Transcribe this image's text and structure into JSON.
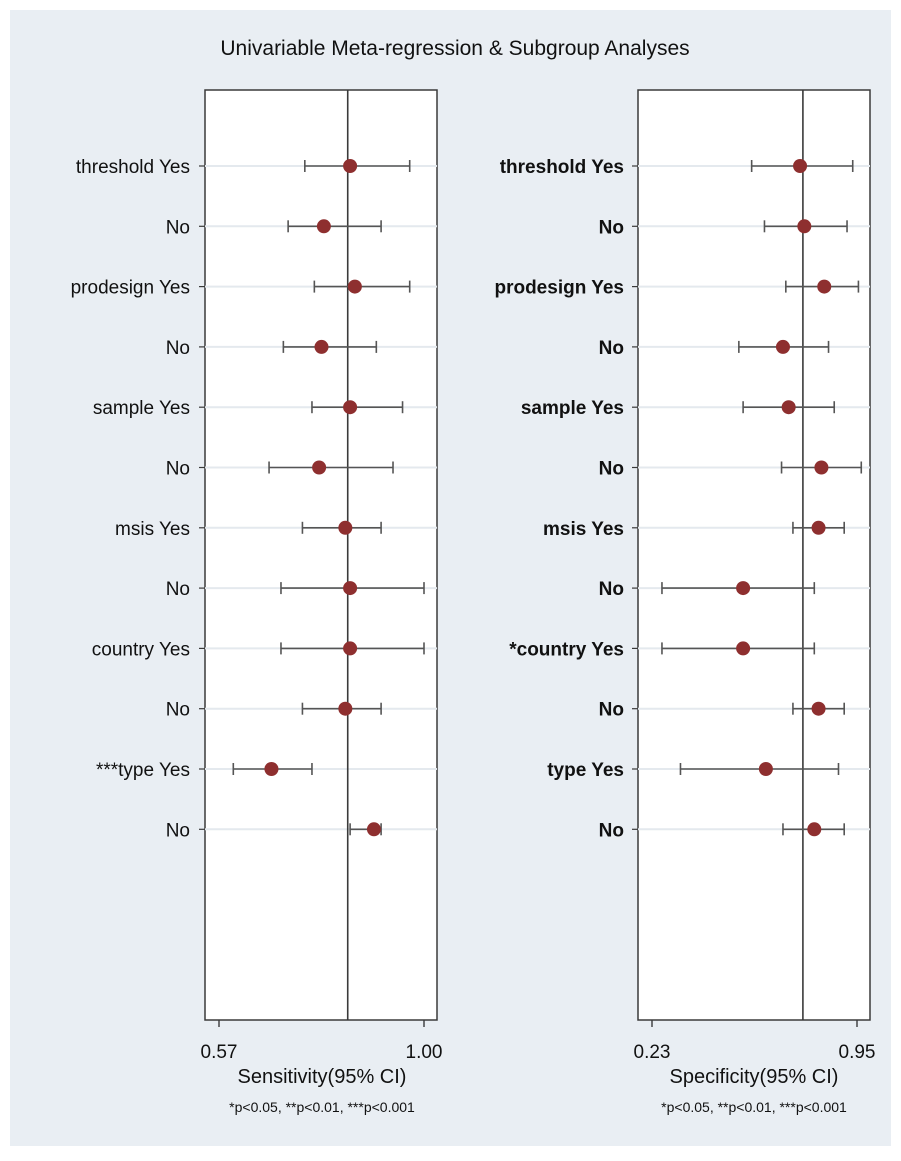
{
  "title": "Univariable Meta-regression & Subgroup Analyses",
  "colors": {
    "background": "#e9eef3",
    "panel": "#ffffff",
    "marker": "#8e2f2f",
    "line": "#3a3a3a",
    "grid": "#e4e9ee"
  },
  "chart_data": [
    {
      "type": "scatter",
      "xlabel": "Sensitivity(95% CI)",
      "footnote": "*p<0.05, **p<0.01, ***p<0.001",
      "xlim": [
        0.57,
        1.0
      ],
      "xticks": [
        "0.57",
        "1.00"
      ],
      "reference_line": 0.84,
      "grid": "horizontal",
      "rows": [
        {
          "label": "threshold Yes",
          "estimate": 0.845,
          "lower": 0.75,
          "upper": 0.97
        },
        {
          "label": "No",
          "estimate": 0.79,
          "lower": 0.715,
          "upper": 0.91
        },
        {
          "label": "prodesign Yes",
          "estimate": 0.855,
          "lower": 0.77,
          "upper": 0.97
        },
        {
          "label": "No",
          "estimate": 0.785,
          "lower": 0.705,
          "upper": 0.9
        },
        {
          "label": "sample Yes",
          "estimate": 0.845,
          "lower": 0.765,
          "upper": 0.955
        },
        {
          "label": "No",
          "estimate": 0.78,
          "lower": 0.675,
          "upper": 0.935
        },
        {
          "label": "msis Yes",
          "estimate": 0.835,
          "lower": 0.745,
          "upper": 0.91
        },
        {
          "label": "No",
          "estimate": 0.845,
          "lower": 0.7,
          "upper": 1.0
        },
        {
          "label": "country Yes",
          "estimate": 0.845,
          "lower": 0.7,
          "upper": 1.0
        },
        {
          "label": "No",
          "estimate": 0.835,
          "lower": 0.745,
          "upper": 0.91
        },
        {
          "label": "***type Yes",
          "estimate": 0.68,
          "lower": 0.6,
          "upper": 0.765
        },
        {
          "label": "No",
          "estimate": 0.895,
          "lower": 0.845,
          "upper": 0.91
        }
      ]
    },
    {
      "type": "scatter",
      "xlabel": "Specificity(95% CI)",
      "footnote": "*p<0.05, **p<0.01, ***p<0.001",
      "xlim": [
        0.23,
        0.95
      ],
      "xticks": [
        "0.23",
        "0.95"
      ],
      "reference_line": 0.76,
      "grid": "horizontal",
      "rows": [
        {
          "label": "threshold Yes",
          "estimate": 0.75,
          "lower": 0.58,
          "upper": 0.935
        },
        {
          "label": "No",
          "estimate": 0.765,
          "lower": 0.625,
          "upper": 0.915
        },
        {
          "label": "prodesign Yes",
          "estimate": 0.835,
          "lower": 0.7,
          "upper": 0.955
        },
        {
          "label": "No",
          "estimate": 0.69,
          "lower": 0.535,
          "upper": 0.85
        },
        {
          "label": "sample Yes",
          "estimate": 0.71,
          "lower": 0.55,
          "upper": 0.87
        },
        {
          "label": "No",
          "estimate": 0.825,
          "lower": 0.685,
          "upper": 0.965
        },
        {
          "label": "msis Yes",
          "estimate": 0.815,
          "lower": 0.725,
          "upper": 0.905
        },
        {
          "label": "No",
          "estimate": 0.55,
          "lower": 0.265,
          "upper": 0.8
        },
        {
          "label": "*country Yes",
          "estimate": 0.55,
          "lower": 0.265,
          "upper": 0.8
        },
        {
          "label": "No",
          "estimate": 0.815,
          "lower": 0.725,
          "upper": 0.905
        },
        {
          "label": "type Yes",
          "estimate": 0.63,
          "lower": 0.33,
          "upper": 0.885
        },
        {
          "label": "No",
          "estimate": 0.8,
          "lower": 0.69,
          "upper": 0.905
        }
      ]
    }
  ]
}
